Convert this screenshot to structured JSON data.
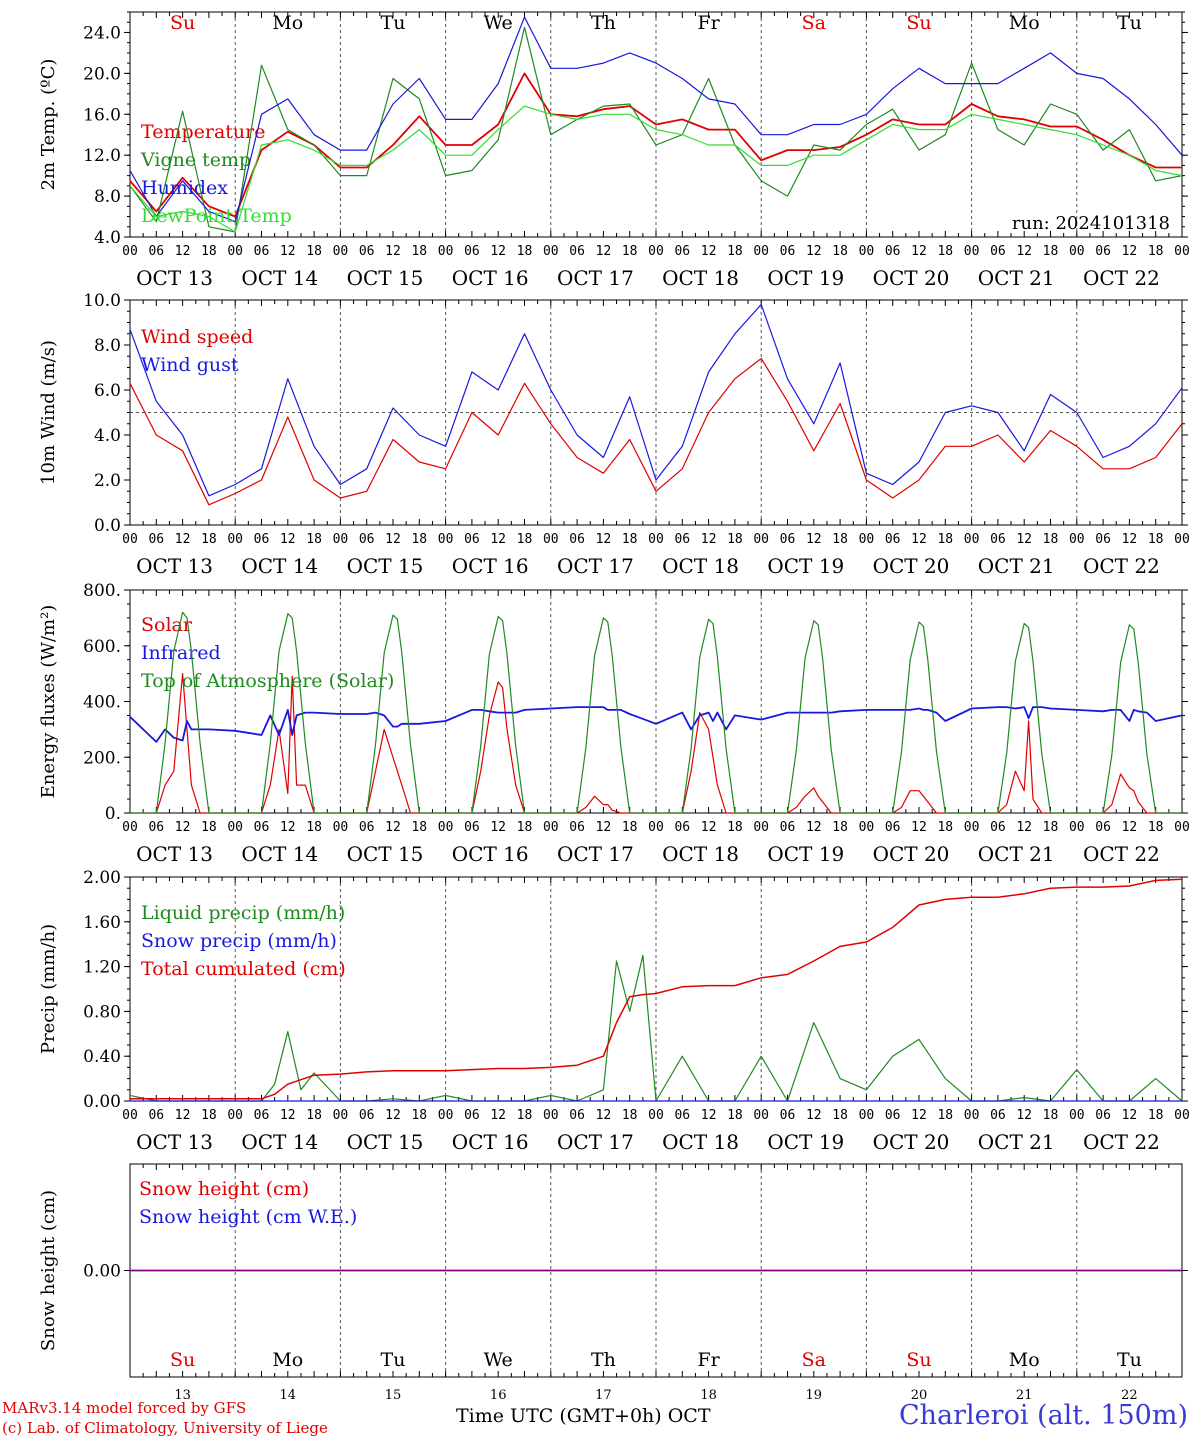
{
  "footer": {
    "model": "MARv3.14 model forced by GFS",
    "copyright": "(c) Lab. of Climatology, University of Liege",
    "station": "Charleroi (alt. 150m)",
    "xlabel": "Time UTC (GMT+0h) OCT"
  },
  "colors": {
    "red": "#e00000",
    "green": "#1f8a1f",
    "blue": "#1818e0",
    "lightgreen": "#33dd33",
    "purple": "#800080",
    "axis": "#000000"
  },
  "time_axis": {
    "hour_labels": [
      "00",
      "06",
      "12",
      "18"
    ],
    "end_label": "00",
    "date_labels": [
      "OCT 13",
      "OCT 14",
      "OCT 15",
      "OCT 16",
      "OCT 17",
      "OCT 18",
      "OCT 19",
      "OCT 20",
      "OCT 21",
      "OCT 22"
    ],
    "days": [
      {
        "label": "Su",
        "weekend": true
      },
      {
        "label": "Mo",
        "weekend": false
      },
      {
        "label": "Tu",
        "weekend": false
      },
      {
        "label": "We",
        "weekend": false
      },
      {
        "label": "Th",
        "weekend": false
      },
      {
        "label": "Fr",
        "weekend": false
      },
      {
        "label": "Sa",
        "weekend": true
      },
      {
        "label": "Su",
        "weekend": true
      },
      {
        "label": "Mo",
        "weekend": false
      },
      {
        "label": "Tu",
        "weekend": false
      }
    ],
    "day_numbers": [
      "13",
      "14",
      "15",
      "16",
      "17",
      "18",
      "19",
      "20",
      "21",
      "22"
    ]
  },
  "chart_data": [
    {
      "type": "line",
      "id": "temperature",
      "ylabel": "2m Temp. (ºC)",
      "ylim": [
        4,
        26
      ],
      "yticks": [
        "4.0",
        "8.0",
        "12.0",
        "16.0",
        "20.0",
        "24.0"
      ],
      "ytick_values": [
        4,
        8,
        12,
        16,
        20,
        24
      ],
      "annotation": "run: 2024101318",
      "x_hours": [
        0,
        6,
        12,
        18,
        24,
        30,
        36,
        42,
        48,
        54,
        60,
        66,
        72,
        78,
        84,
        90,
        96,
        102,
        108,
        114,
        120,
        126,
        132,
        138,
        144,
        150,
        156,
        162,
        168,
        174,
        180,
        186,
        192,
        198,
        204,
        210,
        216,
        222,
        228,
        234,
        240
      ],
      "series": [
        {
          "name": "Temperature",
          "color": "red",
          "values": [
            9.5,
            6.5,
            9.8,
            7.0,
            6.0,
            12.5,
            14.3,
            13.0,
            10.8,
            10.8,
            13.0,
            15.8,
            13.0,
            13.0,
            15.0,
            20.0,
            16.0,
            15.8,
            16.5,
            16.8,
            15.0,
            15.5,
            14.5,
            14.5,
            11.5,
            12.5,
            12.5,
            12.8,
            14.0,
            15.5,
            15.0,
            15.0,
            17.0,
            15.8,
            15.5,
            14.8,
            14.8,
            13.5,
            12.0,
            10.8,
            10.8
          ]
        },
        {
          "name": "Vigne temp",
          "color": "green",
          "values": [
            9.0,
            5.5,
            16.3,
            5.0,
            4.5,
            20.8,
            14.5,
            13.0,
            10.0,
            10.0,
            19.5,
            17.5,
            10.0,
            10.5,
            13.5,
            24.5,
            14.0,
            15.5,
            16.8,
            17.0,
            13.0,
            14.0,
            19.5,
            13.0,
            9.5,
            8.0,
            13.0,
            12.5,
            15.0,
            16.5,
            12.5,
            14.0,
            21.0,
            14.5,
            13.0,
            17.0,
            16.0,
            12.5,
            14.5,
            9.5,
            10.0
          ]
        },
        {
          "name": "Humidex",
          "color": "blue",
          "values": [
            10.5,
            6.0,
            9.5,
            6.5,
            5.5,
            16.0,
            17.5,
            14.0,
            12.5,
            12.5,
            17.0,
            19.5,
            15.5,
            15.5,
            19.0,
            25.5,
            20.5,
            20.5,
            21.0,
            22.0,
            21.0,
            19.5,
            17.5,
            17.0,
            14.0,
            14.0,
            15.0,
            15.0,
            16.0,
            18.5,
            20.5,
            19.0,
            19.0,
            19.0,
            20.5,
            22.0,
            20.0,
            19.5,
            17.5,
            15.0,
            12.0
          ]
        },
        {
          "name": "DewPoint Temp",
          "color": "lightgreen",
          "values": [
            9.0,
            6.0,
            6.5,
            6.0,
            4.5,
            13.0,
            13.5,
            12.5,
            11.0,
            11.0,
            12.5,
            14.5,
            12.0,
            12.0,
            14.5,
            16.8,
            16.0,
            15.5,
            16.0,
            16.0,
            14.5,
            14.0,
            13.0,
            13.0,
            11.0,
            11.0,
            12.0,
            12.0,
            13.5,
            15.0,
            14.5,
            14.5,
            16.0,
            15.5,
            15.0,
            14.5,
            14.0,
            13.0,
            12.0,
            10.5,
            10.0
          ]
        }
      ]
    },
    {
      "type": "line",
      "id": "wind",
      "ylabel": "10m Wind (m/s)",
      "ylim": [
        0,
        10
      ],
      "yticks": [
        "0.0",
        "2.0",
        "4.0",
        "6.0",
        "8.0",
        "10.0"
      ],
      "ytick_values": [
        0,
        2,
        4,
        6,
        8,
        10
      ],
      "reference_line": 5,
      "x_hours": [
        0,
        6,
        12,
        18,
        24,
        30,
        36,
        42,
        48,
        54,
        60,
        66,
        72,
        78,
        84,
        90,
        96,
        102,
        108,
        114,
        120,
        126,
        132,
        138,
        144,
        150,
        156,
        162,
        168,
        174,
        180,
        186,
        192,
        198,
        204,
        210,
        216,
        222,
        228,
        234,
        240
      ],
      "series": [
        {
          "name": "Wind speed",
          "color": "red",
          "values": [
            6.3,
            4.0,
            3.3,
            0.9,
            1.4,
            2.0,
            4.8,
            2.0,
            1.2,
            1.5,
            3.8,
            2.8,
            2.5,
            5.0,
            4.0,
            6.3,
            4.5,
            3.0,
            2.3,
            3.8,
            1.5,
            2.5,
            5.0,
            6.5,
            7.4,
            5.5,
            3.3,
            5.4,
            2.0,
            1.2,
            2.0,
            3.5,
            3.5,
            4.0,
            2.8,
            4.2,
            3.5,
            2.5,
            2.5,
            3.0,
            4.5
          ]
        },
        {
          "name": "Wind gust",
          "color": "blue",
          "values": [
            8.7,
            5.5,
            4.0,
            1.3,
            1.8,
            2.5,
            6.5,
            3.5,
            1.8,
            2.5,
            5.2,
            4.0,
            3.5,
            6.8,
            6.0,
            8.5,
            6.0,
            4.0,
            3.0,
            5.7,
            2.0,
            3.5,
            6.8,
            8.5,
            9.8,
            6.5,
            4.5,
            7.2,
            2.3,
            1.8,
            2.8,
            5.0,
            5.3,
            5.0,
            3.3,
            5.8,
            5.0,
            3.0,
            3.5,
            4.5,
            6.1
          ]
        }
      ]
    },
    {
      "type": "line",
      "id": "energy",
      "ylabel": "Energy fluxes (W/m²)",
      "ylim": [
        0,
        800
      ],
      "yticks": [
        "0.",
        "200.",
        "400.",
        "600.",
        "800."
      ],
      "ytick_values": [
        0,
        200,
        400,
        600,
        800
      ],
      "x_hours": [
        0,
        6,
        8,
        10,
        12,
        13,
        14,
        16,
        18,
        24,
        30,
        32,
        34,
        36,
        37,
        38,
        40,
        42,
        48,
        54,
        56,
        58,
        60,
        61,
        62,
        64,
        66,
        72,
        78,
        80,
        82,
        84,
        85,
        86,
        88,
        90,
        96,
        102,
        104,
        106,
        108,
        109,
        110,
        112,
        114,
        120,
        126,
        128,
        130,
        132,
        133,
        134,
        136,
        138,
        144,
        150,
        152,
        154,
        156,
        157,
        158,
        160,
        162,
        168,
        174,
        176,
        178,
        180,
        181,
        182,
        184,
        186,
        192,
        198,
        200,
        202,
        204,
        205,
        206,
        208,
        210,
        216,
        222,
        224,
        226,
        228,
        229,
        230,
        232,
        234,
        240
      ],
      "series": [
        {
          "name": "Solar",
          "color": "red",
          "values": [
            0,
            0,
            100,
            150,
            500,
            300,
            100,
            0,
            0,
            0,
            0,
            100,
            300,
            70,
            490,
            100,
            100,
            0,
            0,
            0,
            150,
            300,
            200,
            150,
            100,
            0,
            0,
            0,
            0,
            150,
            350,
            470,
            450,
            300,
            100,
            0,
            0,
            0,
            20,
            60,
            30,
            30,
            10,
            0,
            0,
            0,
            0,
            150,
            360,
            300,
            200,
            100,
            0,
            0,
            0,
            0,
            20,
            60,
            90,
            60,
            40,
            0,
            0,
            0,
            0,
            20,
            80,
            80,
            60,
            40,
            0,
            0,
            0,
            0,
            30,
            150,
            80,
            330,
            50,
            0,
            0,
            0,
            0,
            30,
            140,
            90,
            80,
            40,
            0,
            0,
            0
          ]
        },
        {
          "name": "Infrared",
          "color": "blue",
          "values": [
            345,
            255,
            300,
            270,
            260,
            330,
            300,
            300,
            300,
            295,
            280,
            350,
            280,
            370,
            280,
            350,
            360,
            360,
            355,
            355,
            360,
            350,
            310,
            310,
            320,
            320,
            320,
            330,
            370,
            370,
            365,
            360,
            360,
            360,
            360,
            370,
            375,
            380,
            380,
            380,
            380,
            370,
            370,
            370,
            355,
            320,
            360,
            300,
            350,
            360,
            330,
            360,
            300,
            350,
            335,
            360,
            360,
            360,
            360,
            360,
            360,
            360,
            365,
            370,
            370,
            370,
            370,
            375,
            370,
            370,
            360,
            330,
            375,
            380,
            380,
            375,
            380,
            340,
            380,
            380,
            375,
            370,
            365,
            370,
            370,
            330,
            370,
            365,
            360,
            330,
            350
          ]
        },
        {
          "name": "Top of Atmosphere (Solar)",
          "color": "green",
          "values": [
            0,
            0,
            250,
            580,
            720,
            700,
            580,
            250,
            0,
            0,
            0,
            250,
            580,
            715,
            700,
            580,
            250,
            0,
            0,
            0,
            245,
            575,
            710,
            695,
            575,
            245,
            0,
            0,
            0,
            240,
            570,
            705,
            690,
            570,
            240,
            0,
            0,
            0,
            235,
            565,
            700,
            685,
            565,
            235,
            0,
            0,
            0,
            230,
            560,
            695,
            680,
            560,
            230,
            0,
            0,
            0,
            225,
            555,
            690,
            675,
            555,
            225,
            0,
            0,
            0,
            220,
            550,
            685,
            670,
            550,
            220,
            0,
            0,
            0,
            215,
            545,
            680,
            665,
            545,
            215,
            0,
            0,
            0,
            210,
            540,
            675,
            660,
            540,
            210,
            0,
            0
          ]
        }
      ]
    },
    {
      "type": "line",
      "id": "precip",
      "ylabel": "Precip (mm/h)",
      "ylim": [
        0,
        2
      ],
      "yticks": [
        "0.00",
        "0.40",
        "0.80",
        "1.20",
        "1.60",
        "2.00"
      ],
      "ytick_values": [
        0,
        0.4,
        0.8,
        1.2,
        1.6,
        2.0
      ],
      "x_hours": [
        0,
        6,
        12,
        18,
        24,
        30,
        33,
        36,
        39,
        42,
        48,
        54,
        60,
        66,
        72,
        78,
        84,
        90,
        96,
        102,
        108,
        111,
        114,
        117,
        120,
        126,
        132,
        138,
        144,
        150,
        156,
        162,
        168,
        174,
        180,
        186,
        192,
        198,
        204,
        210,
        216,
        222,
        228,
        234,
        240
      ],
      "series": [
        {
          "name": "Liquid precip (mm/h)",
          "color": "green",
          "values": [
            0.05,
            0,
            0,
            0,
            0,
            0,
            0.15,
            0.62,
            0.1,
            0.25,
            0,
            0,
            0.02,
            0,
            0.05,
            0,
            0,
            0,
            0.05,
            0,
            0.1,
            1.25,
            0.8,
            1.3,
            0,
            0.4,
            0,
            0,
            0.4,
            0,
            0.7,
            0.2,
            0.1,
            0.4,
            0.55,
            0.2,
            0,
            0,
            0.03,
            0,
            0.28,
            0,
            0,
            0.2,
            0
          ]
        },
        {
          "name": "Snow precip (mm/h)",
          "color": "blue",
          "values": [
            0,
            0,
            0,
            0,
            0,
            0,
            0,
            0,
            0,
            0,
            0,
            0,
            0,
            0,
            0,
            0,
            0,
            0,
            0,
            0,
            0,
            0,
            0,
            0,
            0,
            0,
            0,
            0,
            0,
            0,
            0,
            0,
            0,
            0,
            0,
            0,
            0,
            0,
            0,
            0,
            0,
            0,
            0,
            0,
            0
          ]
        },
        {
          "name": "Total cumulated (cm)",
          "color": "red",
          "values": [
            0.02,
            0.02,
            0.02,
            0.02,
            0.02,
            0.02,
            0.06,
            0.15,
            0.19,
            0.23,
            0.24,
            0.26,
            0.27,
            0.27,
            0.27,
            0.28,
            0.29,
            0.29,
            0.3,
            0.32,
            0.4,
            0.7,
            0.93,
            0.95,
            0.96,
            1.02,
            1.03,
            1.03,
            1.1,
            1.13,
            1.25,
            1.38,
            1.42,
            1.55,
            1.75,
            1.8,
            1.82,
            1.82,
            1.85,
            1.9,
            1.91,
            1.91,
            1.92,
            1.97,
            1.98
          ]
        }
      ]
    },
    {
      "type": "line",
      "id": "snow",
      "ylabel": "Snow height (cm)",
      "ylim": [
        -1,
        1
      ],
      "yticks": [
        "0.00"
      ],
      "ytick_values": [
        0
      ],
      "x_hours": [
        0,
        240
      ],
      "series": [
        {
          "name": "Snow height (cm)",
          "color": "red",
          "values": [
            0,
            0
          ]
        },
        {
          "name": "Snow height (cm W.E.)",
          "color": "blue",
          "values": [
            0,
            0
          ]
        }
      ]
    }
  ]
}
